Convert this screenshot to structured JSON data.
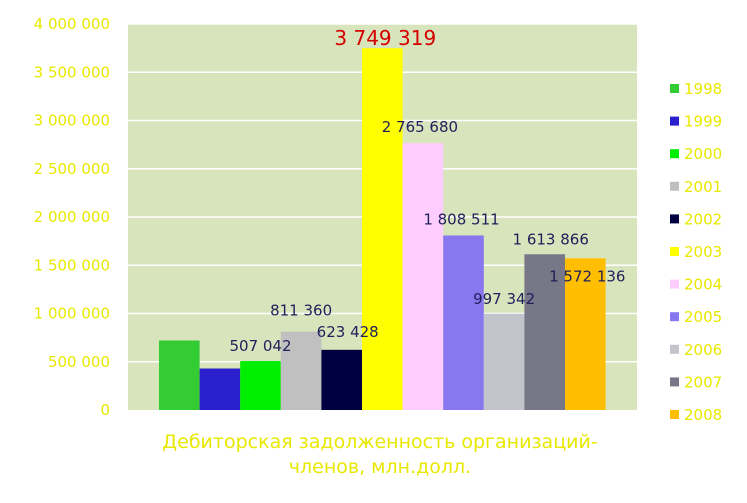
{
  "chart_data": {
    "type": "bar",
    "title": "",
    "caption": "Дебиторская задолженность организаций-\nчленов, млн.долл.",
    "xlabel": "",
    "ylabel": "",
    "ylim": [
      0,
      4000000
    ],
    "yticks": [
      0,
      500000,
      1000000,
      1500000,
      2000000,
      2500000,
      3000000,
      3500000,
      4000000
    ],
    "ytick_labels": [
      "0",
      "500 000",
      "1 000 000",
      "1 500 000",
      "2 000 000",
      "2 500 000",
      "3 000 000",
      "3 500 000",
      "4 000 000"
    ],
    "grid": true,
    "legend_position": "right",
    "series": [
      {
        "name": "1998",
        "value": 720000,
        "color": "#33cc33",
        "label": ""
      },
      {
        "name": "1999",
        "value": 430000,
        "color": "#2a1fcc",
        "label": ""
      },
      {
        "name": "2000",
        "value": 507042,
        "color": "#00ee00",
        "label": "507 042"
      },
      {
        "name": "2001",
        "value": 811360,
        "color": "#c0c0c0",
        "label": "811 360"
      },
      {
        "name": "2002",
        "value": 623428,
        "color": "#000040",
        "label": "623 428"
      },
      {
        "name": "2003",
        "value": 3749319,
        "color": "#ffff00",
        "label": "3 749 319"
      },
      {
        "name": "2004",
        "value": 2765680,
        "color": "#ffccff",
        "label": "2 765 680"
      },
      {
        "name": "2005",
        "value": 1808511,
        "color": "#8877ee",
        "label": "1 808 511"
      },
      {
        "name": "2006",
        "value": 997342,
        "color": "#c4c4cc",
        "label": "997 342"
      },
      {
        "name": "2007",
        "value": 1613866,
        "color": "#777788",
        "label": "1 613 866"
      },
      {
        "name": "2008",
        "value": 1572136,
        "color": "#ffbf00",
        "label": "1 572 136"
      }
    ],
    "colors": {
      "plot_background": "#d8e4bc",
      "gridline": "#ffffff",
      "axis_text": "#e8e800",
      "highlight_label": "#d40000",
      "data_label": "#1f1f5a"
    }
  }
}
